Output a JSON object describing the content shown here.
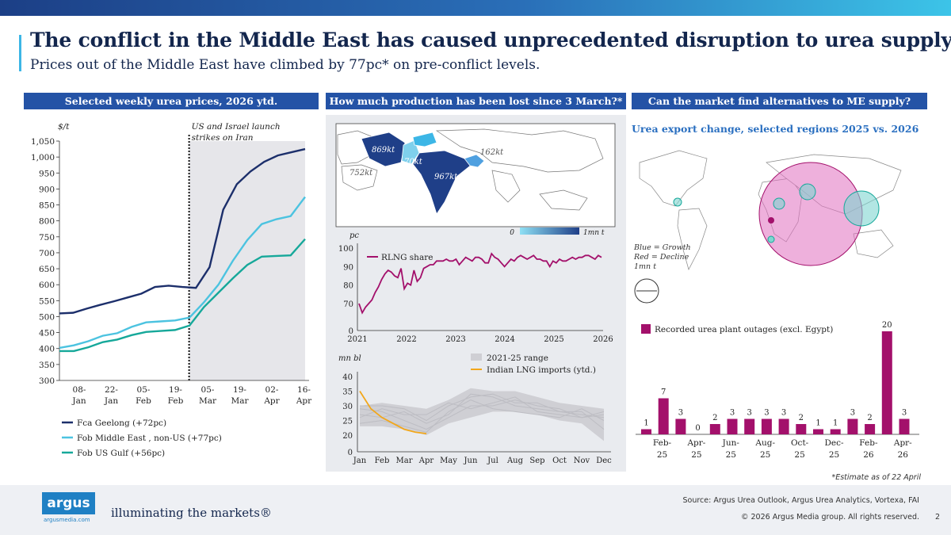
{
  "header": {
    "title": "The conflict in the Middle East has caused unprecedented disruption to urea supply.",
    "subtitle": "Prices out of the Middle East have climbed by 77pc* on pre-conflict levels."
  },
  "panels": {
    "left_title": "Selected weekly urea prices, 2026 ytd.",
    "middle_title": "How much production has been lost since 3 March?*",
    "right_title": "Can the market find alternatives to ME supply?"
  },
  "colors": {
    "navy": "#1c2f6b",
    "lightblue": "#4cc3e0",
    "teal": "#16a89a",
    "magenta": "#a3106b",
    "header": "#2453a6"
  },
  "chart_data": [
    {
      "type": "line",
      "title": "Selected weekly urea prices, 2026 ytd.",
      "ylabel": "$/t",
      "ylim": [
        300,
        1050
      ],
      "yticks": [
        "300",
        "350",
        "400",
        "450",
        "500",
        "550",
        "600",
        "650",
        "700",
        "750",
        "800",
        "850",
        "900",
        "950",
        "1,000",
        "1,050"
      ],
      "xtick_labels": [
        [
          "08-",
          "Jan"
        ],
        [
          "22-",
          "Jan"
        ],
        [
          "05-",
          "Feb"
        ],
        [
          "19-",
          "Feb"
        ],
        [
          "05-",
          "Mar"
        ],
        [
          "19-",
          "Mar"
        ],
        [
          "02-",
          "Apr"
        ],
        [
          "16-",
          "Apr"
        ]
      ],
      "annotation": [
        "US and Israel launch",
        "strikes on Iran"
      ],
      "series": [
        {
          "name": "Fca Geelong (+72pc)",
          "values": [
            510,
            512,
            525,
            537,
            548,
            560,
            572,
            593,
            597,
            593,
            590,
            655,
            835,
            915,
            955,
            985,
            1005,
            1015,
            1025
          ]
        },
        {
          "name": "Fob Middle East , non-US (+77pc)",
          "values": [
            402,
            410,
            423,
            440,
            448,
            468,
            482,
            485,
            488,
            497,
            545,
            600,
            675,
            740,
            790,
            805,
            815,
            875
          ]
        },
        {
          "name": "Fob US Gulf (+56pc)",
          "values": [
            392,
            392,
            404,
            420,
            428,
            442,
            452,
            455,
            458,
            472,
            530,
            575,
            620,
            662,
            688,
            690,
            692,
            743
          ]
        }
      ]
    },
    {
      "type": "map",
      "title": "How much production has been lost since 3 March?*",
      "labels": [
        "869kt",
        "70kt",
        "752kt",
        "967kt",
        "162kt"
      ],
      "scale": [
        "0",
        "1mn t"
      ]
    },
    {
      "type": "line",
      "ylabel": "pc",
      "ylim": [
        0,
        100
      ],
      "yticks": [
        "0",
        "70",
        "80",
        "90",
        "100"
      ],
      "xticks": [
        "2021",
        "2022",
        "2023",
        "2024",
        "2025",
        "2026"
      ],
      "series": [
        {
          "name": "RLNG share",
          "values": [
            70,
            65,
            68,
            70,
            72,
            76,
            79,
            83,
            86,
            88,
            87,
            85,
            84,
            89,
            78,
            81,
            80,
            88,
            82,
            84,
            89,
            90,
            91,
            91,
            93,
            93,
            93,
            94,
            93,
            93,
            94,
            91,
            93,
            95,
            94,
            93,
            95,
            95,
            94,
            92,
            92,
            97,
            95,
            94,
            92,
            90,
            92,
            94,
            93,
            95,
            96,
            95,
            94,
            95,
            96,
            94,
            94,
            93,
            93,
            90,
            93,
            92,
            94,
            93,
            93,
            94,
            95,
            94,
            95,
            95,
            96,
            96,
            95,
            94,
            96,
            95
          ]
        }
      ]
    },
    {
      "type": "line",
      "ylabel": "mn bl",
      "ylim": [
        0,
        40
      ],
      "yticks": [
        "0",
        "20",
        "25",
        "30",
        "35",
        "40"
      ],
      "xticks": [
        "Jan",
        "Feb",
        "Mar",
        "Apr",
        "May",
        "Jun",
        "Jul",
        "Aug",
        "Sep",
        "Oct",
        "Nov",
        "Dec"
      ],
      "range": {
        "name": "2021-25 range",
        "low": [
          23,
          23,
          22,
          20,
          24,
          26,
          28,
          28,
          27,
          25,
          24,
          18
        ],
        "high": [
          30,
          31,
          30,
          29,
          32,
          36,
          35,
          35,
          33,
          31,
          30,
          29
        ]
      },
      "range_lines": [
        [
          27,
          26,
          28,
          24,
          27,
          34,
          33,
          30,
          29,
          28,
          27,
          26
        ],
        [
          29,
          28,
          25,
          22,
          26,
          30,
          30,
          32,
          30,
          29,
          26,
          27
        ],
        [
          24,
          25,
          23,
          21,
          28,
          32,
          29,
          28,
          27,
          26,
          29,
          25
        ],
        [
          30,
          30,
          29,
          25,
          30,
          33,
          34,
          31,
          31,
          28,
          28,
          22
        ],
        [
          26,
          29,
          27,
          27,
          31,
          29,
          31,
          33,
          28,
          27,
          26,
          28
        ]
      ],
      "series": [
        {
          "name": "Indian LNG imports (ytd.)",
          "x": [
            0,
            0.5,
            1,
            1.5,
            2,
            2.5,
            3
          ],
          "values": [
            35,
            29,
            26,
            24,
            22,
            21,
            20.5
          ]
        }
      ]
    },
    {
      "type": "bubble-map",
      "title": "Urea export change, selected regions 2025 vs. 2026",
      "legend": [
        "Blue = Growth",
        "Red = Decline",
        "1mn t"
      ]
    },
    {
      "type": "bar",
      "series_name": "Recorded urea plant outages (excl. Egypt)",
      "values": [
        1,
        7,
        3,
        0,
        2,
        3,
        3,
        3,
        3,
        2,
        1,
        1,
        3,
        2,
        20,
        3
      ],
      "xtick_labels": [
        [
          "Feb-",
          "25"
        ],
        [
          "Apr-",
          "25"
        ],
        [
          "Jun-",
          "25"
        ],
        [
          "Aug-",
          "25"
        ],
        [
          "Oct-",
          "25"
        ],
        [
          "Dec-",
          "25"
        ],
        [
          "Feb-",
          "26"
        ],
        [
          "Apr-",
          "26"
        ]
      ]
    }
  ],
  "footer": {
    "estimate": "*Estimate as of 22 April",
    "logo": "argus",
    "logo_url": "argusmedia.com",
    "tagline": "illuminating the markets®",
    "source": "Source: Argus Urea Outlook, Argus Urea Analytics, Vortexa, FAI",
    "copyright": "© 2026 Argus Media group. All rights reserved.",
    "page": "2"
  }
}
